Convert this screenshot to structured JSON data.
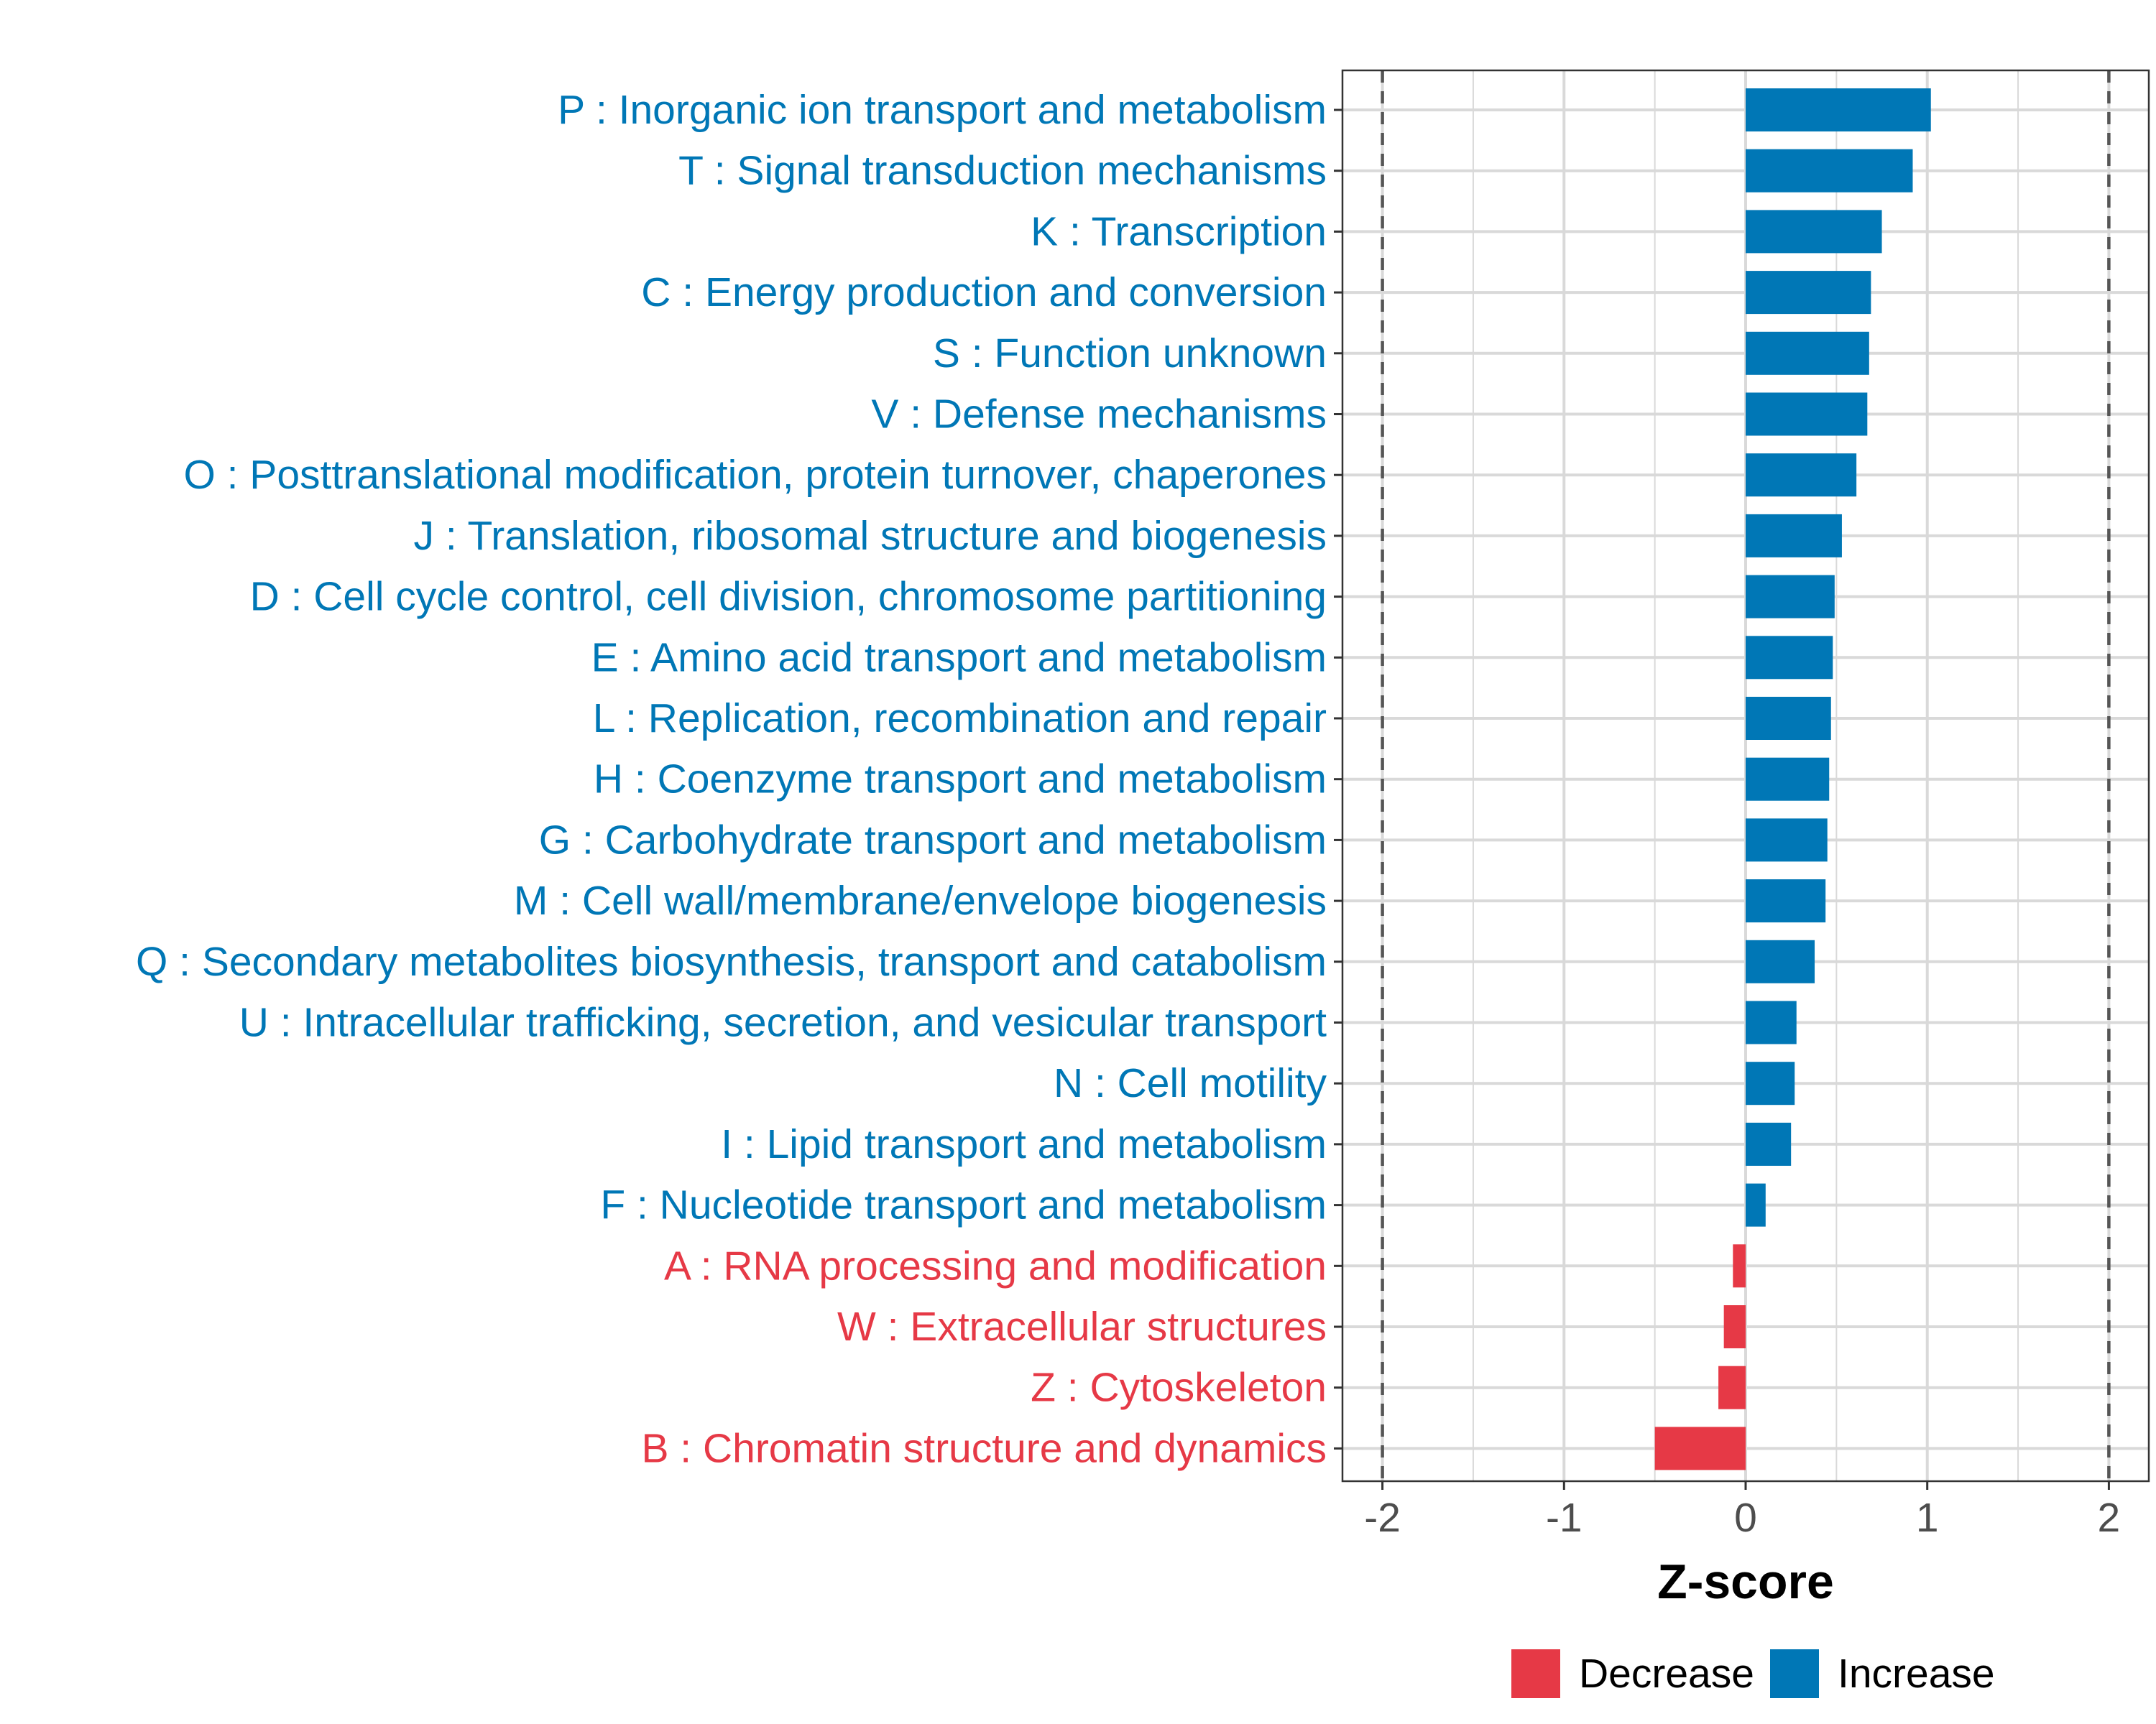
{
  "chart_data": {
    "type": "bar",
    "orientation": "horizontal",
    "xlabel": "Z-score",
    "ylabel": "",
    "xlim": [
      -2.22,
      2.22
    ],
    "xticks": [
      -2,
      -1,
      0,
      1,
      2
    ],
    "xtick_labels": [
      "-2",
      "-1",
      "0",
      "1",
      "2"
    ],
    "reference_lines": [
      -2,
      2
    ],
    "grid": true,
    "categories": [
      "P : Inorganic ion transport and metabolism",
      "T : Signal transduction mechanisms",
      "K : Transcription",
      "C : Energy production and conversion",
      "S : Function unknown",
      "V : Defense mechanisms",
      "O : Posttranslational modification, protein turnover, chaperones",
      "J : Translation, ribosomal structure and biogenesis",
      "D : Cell cycle control, cell division, chromosome partitioning",
      "E : Amino acid transport and metabolism",
      "L : Replication, recombination and repair",
      "H : Coenzyme transport and metabolism",
      "G : Carbohydrate transport and metabolism",
      "M : Cell wall/membrane/envelope biogenesis",
      "Q : Secondary metabolites biosynthesis, transport and catabolism",
      "U : Intracellular trafficking, secretion, and vesicular transport",
      "N : Cell motility",
      "I : Lipid transport and metabolism",
      "F : Nucleotide transport and metabolism",
      "A : RNA processing and modification",
      "W : Extracellular structures",
      "Z : Cytoskeleton",
      "B : Chromatin structure and dynamics"
    ],
    "values": [
      1.02,
      0.92,
      0.75,
      0.69,
      0.68,
      0.67,
      0.61,
      0.53,
      0.49,
      0.48,
      0.47,
      0.46,
      0.45,
      0.44,
      0.38,
      0.28,
      0.27,
      0.25,
      0.11,
      -0.07,
      -0.12,
      -0.15,
      -0.5
    ],
    "groups": [
      "Increase",
      "Increase",
      "Increase",
      "Increase",
      "Increase",
      "Increase",
      "Increase",
      "Increase",
      "Increase",
      "Increase",
      "Increase",
      "Increase",
      "Increase",
      "Increase",
      "Increase",
      "Increase",
      "Increase",
      "Increase",
      "Increase",
      "Decrease",
      "Decrease",
      "Decrease",
      "Decrease"
    ],
    "legend": {
      "placement": "bottom",
      "entries": [
        {
          "name": "Decrease",
          "color": "#e63946"
        },
        {
          "name": "Increase",
          "color": "#0077b6"
        }
      ]
    },
    "colors": {
      "Decrease": "#e63946",
      "Increase": "#0077b6",
      "grid": "#d9d9d9",
      "panel_border": "#333333",
      "reference_line": "#555555",
      "tick_text": "#4d4d4d"
    }
  }
}
